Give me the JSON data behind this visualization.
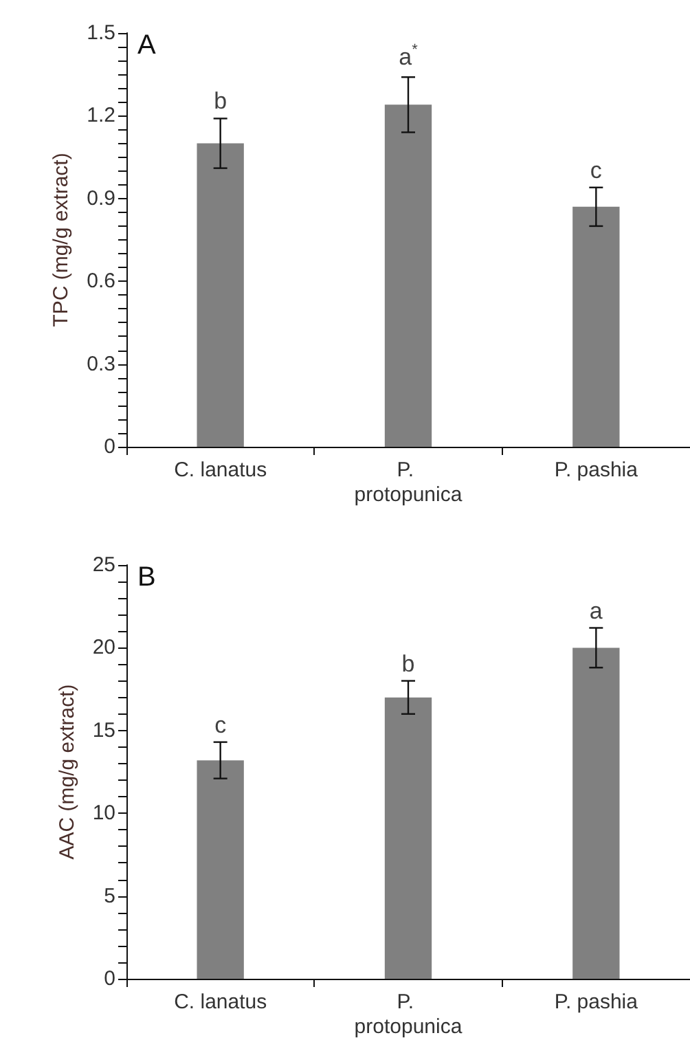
{
  "chart_data": [
    {
      "type": "bar",
      "title": "A",
      "ylabel": "TPC (mg/g extract)",
      "categories": [
        "C. lanatus",
        "P. protopunica",
        "P. pashia"
      ],
      "series": [
        {
          "color": "#808080",
          "values": [
            1.1,
            1.24,
            0.87
          ],
          "errors": [
            0.09,
            0.1,
            0.07
          ]
        }
      ],
      "ylim": [
        0,
        1.5
      ],
      "yticks": [
        0,
        {
          "value": 0.05,
          "label": null
        },
        {
          "value": 0.1,
          "label": null
        },
        {
          "value": 0.15,
          "label": null
        },
        {
          "value": 0.2,
          "label": null
        },
        {
          "value": 0.25,
          "label": null
        },
        {
          "value": 0.3,
          "label": "0.3"
        },
        {
          "value": 0.35,
          "label": null
        },
        {
          "value": 0.4,
          "label": null
        },
        {
          "value": 0.45,
          "label": null
        },
        {
          "value": 0.5,
          "label": null
        },
        {
          "value": 0.55,
          "label": null
        },
        {
          "value": 0.6,
          "label": "0.6"
        },
        {
          "value": 0.65,
          "label": null
        },
        {
          "value": 0.7,
          "label": null
        },
        {
          "value": 0.75,
          "label": null
        },
        {
          "value": 0.8,
          "label": null
        },
        {
          "value": 0.85,
          "label": null
        },
        {
          "value": 0.9,
          "label": "0.9"
        },
        {
          "value": 0.95,
          "label": null
        },
        {
          "value": 1.0,
          "label": null
        },
        {
          "value": 1.05,
          "label": null
        },
        {
          "value": 1.1,
          "label": null
        },
        {
          "value": 1.15,
          "label": null
        },
        {
          "value": 1.2,
          "label": "1.2"
        },
        {
          "value": 1.25,
          "label": null
        },
        {
          "value": 1.3,
          "label": null
        },
        {
          "value": 1.35,
          "label": null
        },
        {
          "value": 1.4,
          "label": null
        },
        {
          "value": 1.45,
          "label": null
        },
        {
          "value": 1.5,
          "label": "1.5"
        }
      ],
      "annotations": [
        {
          "text": "b",
          "x": "C. lanatus",
          "y": 1.19
        },
        {
          "text": "a$^{*}$",
          "x": "P. protopunica",
          "y": 1.34
        },
        {
          "text": "c",
          "x": "P. pashia",
          "y": 0.94
        }
      ],
      "grid": false
    },
    {
      "type": "bar",
      "title": "B",
      "ylabel": "AAC (mg/g extract)",
      "categories": [
        "C. lanatus",
        "P. protopunica",
        "P. pashia"
      ],
      "series": [
        {
          "color": "#808080",
          "values": [
            13.2,
            17.0,
            20.0
          ],
          "errors": [
            1.1,
            1.0,
            1.2
          ]
        }
      ],
      "ylim": [
        0,
        25
      ],
      "yticks": [
        0,
        {
          "value": 1,
          "label": null
        },
        {
          "value": 2,
          "label": null
        },
        {
          "value": 3,
          "label": null
        },
        {
          "value": 4,
          "label": null
        },
        5,
        {
          "value": 6,
          "label": null
        },
        {
          "value": 7,
          "label": null
        },
        {
          "value": 8,
          "label": null
        },
        {
          "value": 9,
          "label": null
        },
        10,
        {
          "value": 11,
          "label": null
        },
        {
          "value": 12,
          "label": null
        },
        {
          "value": 13,
          "label": null
        },
        {
          "value": 14,
          "label": null
        },
        15,
        {
          "value": 16,
          "label": null
        },
        {
          "value": 17,
          "label": null
        },
        {
          "value": 18,
          "label": null
        },
        {
          "value": 19,
          "label": null
        },
        20,
        {
          "value": 21,
          "label": null
        },
        {
          "value": 22,
          "label": null
        },
        {
          "value": 23,
          "label": null
        },
        {
          "value": 24,
          "label": null
        },
        25
      ],
      "annotations": [
        {
          "text": "c",
          "x": "C. lanatus",
          "y": 14.3
        },
        {
          "text": "b",
          "x": "P. protopunica",
          "y": 18.0
        },
        {
          "text": "a",
          "x": "P. pashia",
          "y": 21.2
        }
      ],
      "grid": false
    }
  ]
}
